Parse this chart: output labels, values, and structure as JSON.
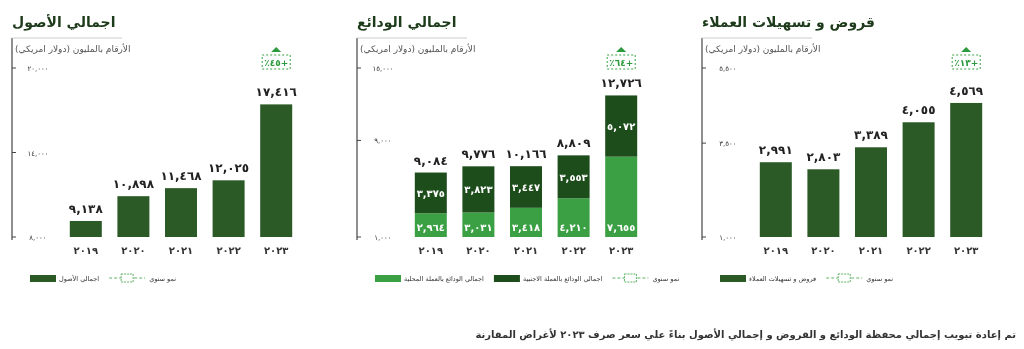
{
  "chart_data": [
    {
      "type": "bar",
      "title": "قروض و تسهيلات العملاء",
      "subtitle": "الأرقام بالمليون (دولار امريكي)",
      "categories": [
        "٢٠١٩",
        "٢٠٢٠",
        "٢٠٢١",
        "٢٠٢٢",
        "٢٠٢٣"
      ],
      "series": [
        {
          "name": "قروض و تسهيلات العملاء",
          "color": "#2b5a27",
          "values": [
            2991,
            2803,
            3389,
            4055,
            4569
          ],
          "value_labels": [
            "٢,٩٩١",
            "٢,٨٠٣",
            "٣,٣٨٩",
            "٤,٠٥٥",
            "٤,٥٦٩"
          ]
        }
      ],
      "ylim": [
        1000,
        5500
      ],
      "yticks": [
        {
          "value": 1000,
          "label": "١,٠٠٠"
        },
        {
          "value": 3500,
          "label": "٣,٥٠٠"
        },
        {
          "value": 5500,
          "label": "٥,٥٠٠"
        }
      ],
      "legend": "bottom",
      "annotations": [
        "٪١٣+",
        "نمو سنوي",
        "تم إعادة تبويب إجمالي محفظة الودائع و القروض و إجمالي الأصول بناءً علي سعر صرف ٢٠٢٣ لأغراض المقارنة"
      ]
    },
    {
      "type": "bar",
      "title": "اجمالي الودائع",
      "subtitle": "الأرقام بالمليون (دولار امريكي)",
      "categories": [
        "٢٠١٩",
        "٢٠٢٠",
        "٢٠٢١",
        "٢٠٢٢",
        "٢٠٢٣"
      ],
      "stacked": true,
      "series": [
        {
          "name": "اجمالي الودائع بالعملة المحلية",
          "color": "#3aa043",
          "values": [
            2964,
            3031,
            3418,
            4210,
            7655
          ],
          "value_labels": [
            "٢,٩٦٤",
            "٣,٠٣١",
            "٣,٤١٨",
            "٤,٢١٠",
            "٧,٦٥٥"
          ]
        },
        {
          "name": "اجمالي الودائع بالعملة الاجنبية",
          "color": "#1e4d1c",
          "values": [
            3375,
            3823,
            3447,
            3553,
            5072
          ],
          "value_labels": [
            "٣,٣٧٥",
            "٣,٨٢٣",
            "٣,٤٤٧",
            "٣,٥٥٣",
            "٥,٠٧٢"
          ]
        }
      ],
      "ylim": [
        1000,
        15000
      ],
      "yticks": [
        {
          "value": 1000,
          "label": "١,٠٠٠"
        },
        {
          "value": 9000,
          "label": "٩,٠٠٠"
        },
        {
          "value": 15000,
          "label": "١٥,٠٠٠"
        }
      ],
      "legend": "bottom",
      "annotations": [
        "٪٦٤+",
        "نمو سنوي",
        {
          "text": "٩,٠٨٤",
          "x": "٢٠١٩",
          "y": 6339
        },
        {
          "text": "٩,٧٧٦",
          "x": "٢٠٢٠",
          "y": 6854
        },
        {
          "text": "١٠,١٦٦",
          "x": "٢٠٢١",
          "y": 6865
        },
        {
          "text": "٨,٨٠٩",
          "x": "٢٠٢٢",
          "y": 7763
        },
        {
          "text": "١٢,٧٢٦",
          "x": "٢٠٢٣",
          "y": 12727
        }
      ]
    },
    {
      "type": "bar",
      "title": "اجمالي الأصول",
      "subtitle": "الأرقام بالمليون (دولار امريكي)",
      "categories": [
        "٢٠١٩",
        "٢٠٢٠",
        "٢٠٢١",
        "٢٠٢٢",
        "٢٠٢٣"
      ],
      "series": [
        {
          "name": "اجمالي الأصول",
          "color": "#2b5a27",
          "values": [
            9138,
            10898,
            11468,
            12025,
            17416
          ],
          "value_labels": [
            "٩,١٣٨",
            "١٠,٨٩٨",
            "١١,٤٦٨",
            "١٢,٠٢٥",
            "١٧,٤١٦"
          ]
        }
      ],
      "ylim": [
        8000,
        20000
      ],
      "yticks": [
        {
          "value": 8000,
          "label": "٨,٠٠٠"
        },
        {
          "value": 14000,
          "label": "١٤,٠٠٠"
        },
        {
          "value": 20000,
          "label": "٢٠,٠٠٠"
        }
      ],
      "legend": "bottom",
      "annotations": [
        "٪٤٥+",
        "نمو سنوي"
      ]
    }
  ]
}
